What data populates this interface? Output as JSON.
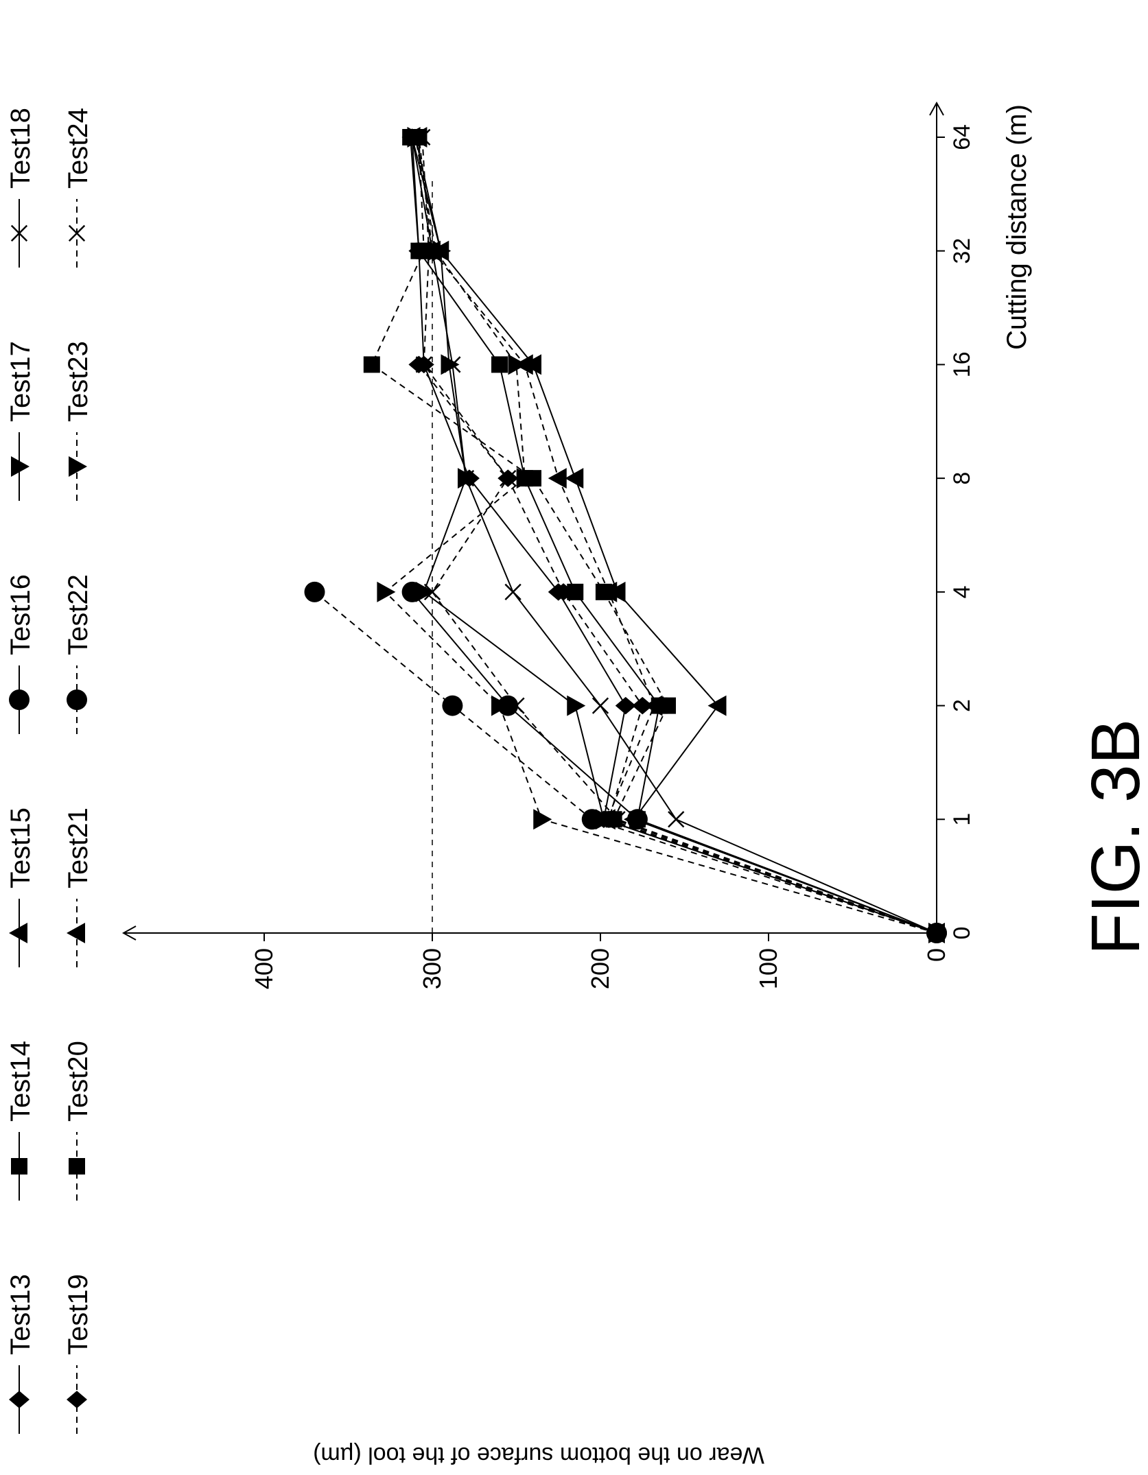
{
  "figure_label": "FIG. 3B",
  "chart_data": {
    "type": "line",
    "title": "",
    "xlabel": "Cutting distance (m)",
    "ylabel": "Wear on the bottom surface of the tool (µm)",
    "x_ticks": [
      "0",
      "1",
      "2",
      "4",
      "8",
      "16",
      "32",
      "64"
    ],
    "x_values": [
      0,
      1,
      2,
      4,
      8,
      16,
      32,
      64
    ],
    "y_ticks": [
      "0",
      "100",
      "200",
      "300",
      "400"
    ],
    "ylim": [
      0,
      460
    ],
    "x_scale": "log2 (0, 1, 2, 4, 8, 16, 32, 64 equally spaced)",
    "threshold_line": {
      "y": 300,
      "style": "dashed"
    },
    "legend_position": "top",
    "series": [
      {
        "name": "Test13",
        "line": "solid",
        "marker": "diamond",
        "x": [
          0,
          1,
          2,
          4,
          8,
          16,
          32,
          64
        ],
        "y": [
          0,
          198,
          185,
          225,
          278,
          305,
          308,
          312
        ]
      },
      {
        "name": "Test14",
        "line": "solid",
        "marker": "square",
        "x": [
          0,
          1,
          2,
          4,
          8,
          16,
          32,
          64
        ],
        "y": [
          0,
          178,
          165,
          215,
          245,
          260,
          308,
          313
        ]
      },
      {
        "name": "Test15",
        "line": "solid",
        "marker": "triangle-up",
        "x": [
          0,
          1,
          2,
          4,
          8,
          16,
          32,
          64
        ],
        "y": [
          0,
          180,
          130,
          190,
          215,
          240,
          295,
          312
        ]
      },
      {
        "name": "Test16",
        "line": "solid",
        "marker": "circle",
        "x": [
          0,
          1,
          2,
          4
        ],
        "y": [
          0,
          178,
          255,
          312
        ]
      },
      {
        "name": "Test17",
        "line": "solid",
        "marker": "triangle-down",
        "x": [
          0,
          1,
          2,
          4,
          8,
          16,
          32,
          64
        ],
        "y": [
          0,
          198,
          215,
          305,
          280,
          290,
          295,
          310
        ]
      },
      {
        "name": "Test18",
        "line": "solid",
        "marker": "x",
        "x": [
          0,
          1,
          2,
          4,
          8,
          16,
          32,
          64
        ],
        "y": [
          0,
          155,
          200,
          252,
          280,
          288,
          300,
          312
        ]
      },
      {
        "name": "Test19",
        "line": "dashed",
        "marker": "diamond",
        "x": [
          0,
          1,
          2,
          4,
          8,
          16
        ],
        "y": [
          0,
          195,
          175,
          222,
          255,
          308
        ]
      },
      {
        "name": "Test20",
        "line": "dashed",
        "marker": "square",
        "x": [
          0,
          1,
          2,
          4,
          8,
          16,
          32,
          64
        ],
        "y": [
          0,
          192,
          160,
          198,
          240,
          336,
          305,
          308
        ]
      },
      {
        "name": "Test21",
        "line": "dashed",
        "marker": "triangle-up",
        "x": [
          0,
          1,
          2,
          4,
          8,
          16,
          32,
          64
        ],
        "y": [
          0,
          196,
          168,
          195,
          225,
          245,
          300,
          308
        ]
      },
      {
        "name": "Test22",
        "line": "dashed",
        "marker": "circle",
        "x": [
          0,
          1,
          2,
          4
        ],
        "y": [
          0,
          205,
          288,
          370
        ]
      },
      {
        "name": "Test23",
        "line": "dashed",
        "marker": "triangle-down",
        "x": [
          0,
          1,
          2,
          4,
          8,
          16,
          32,
          64
        ],
        "y": [
          0,
          235,
          260,
          328,
          245,
          250,
          298,
          310
        ]
      },
      {
        "name": "Test24",
        "line": "dashed",
        "marker": "x",
        "x": [
          0,
          1,
          2,
          4,
          8,
          16,
          32,
          64
        ],
        "y": [
          0,
          190,
          250,
          300,
          255,
          305,
          302,
          306
        ]
      }
    ]
  }
}
